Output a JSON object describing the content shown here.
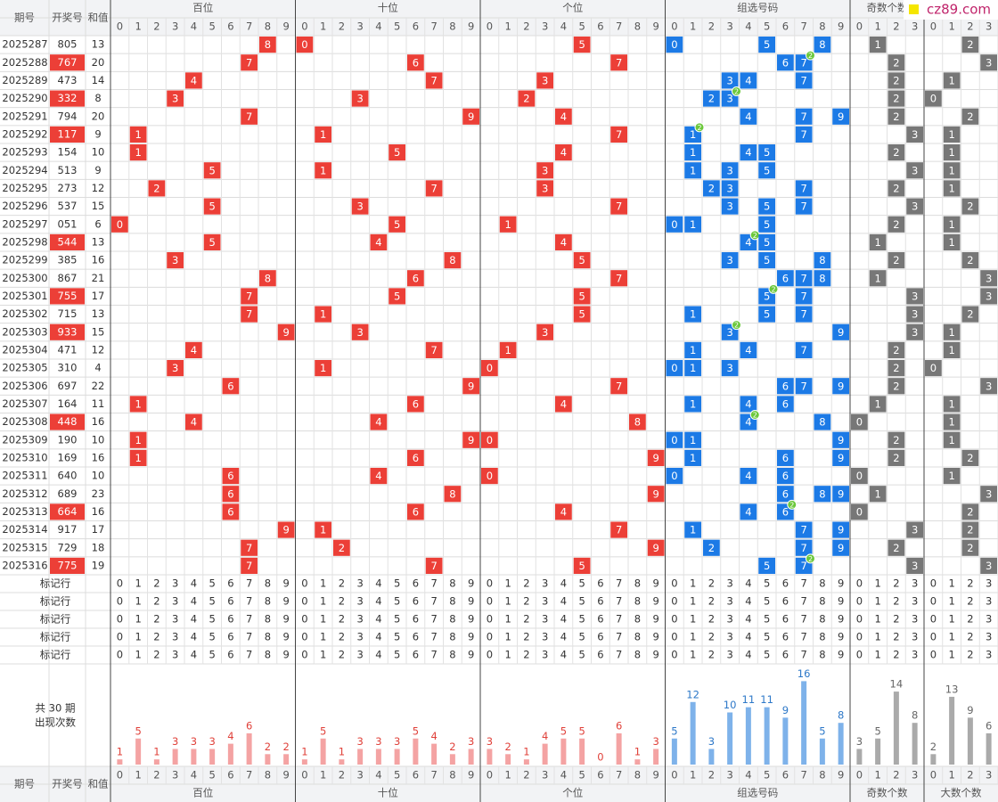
{
  "table": {
    "watermark": "cz89.com",
    "columns": [
      "期号",
      "开奖号",
      "和值"
    ],
    "pair_badge": "2",
    "summary": [
      "共 30 期",
      "出现次数"
    ],
    "marker_rows": [
      "标记行",
      "标记行",
      "标记行",
      "标记行",
      "标记行"
    ],
    "sections": [
      {
        "title": "百位",
        "field": "hundreds",
        "color": "#ec3f37",
        "bar_color": "#f4a3a3",
        "count_color": "#e0413a",
        "labels": [
          "0",
          "1",
          "2",
          "3",
          "4",
          "5",
          "6",
          "7",
          "8",
          "9"
        ],
        "counts": [
          1,
          5,
          1,
          3,
          3,
          3,
          4,
          6,
          2,
          2
        ]
      },
      {
        "title": "十位",
        "field": "tens",
        "color": "#ec3f37",
        "bar_color": "#f4a3a3",
        "count_color": "#e0413a",
        "labels": [
          "0",
          "1",
          "2",
          "3",
          "4",
          "5",
          "6",
          "7",
          "8",
          "9"
        ],
        "counts": [
          1,
          5,
          1,
          3,
          3,
          3,
          5,
          4,
          2,
          3
        ]
      },
      {
        "title": "个位",
        "field": "units",
        "color": "#ec3f37",
        "bar_color": "#f4a3a3",
        "count_color": "#e0413a",
        "labels": [
          "0",
          "1",
          "2",
          "3",
          "4",
          "5",
          "6",
          "7",
          "8",
          "9"
        ],
        "counts": [
          3,
          2,
          1,
          4,
          5,
          5,
          0,
          6,
          1,
          3
        ]
      },
      {
        "title": "组选号码",
        "field": "group",
        "color": "#1c7ae6",
        "bar_color": "#7eb2ea",
        "count_color": "#2d78c8",
        "labels": [
          "0",
          "1",
          "2",
          "3",
          "4",
          "5",
          "6",
          "7",
          "8",
          "9"
        ],
        "counts": [
          5,
          12,
          3,
          10,
          11,
          11,
          9,
          16,
          5,
          8
        ]
      },
      {
        "title": "奇数个数",
        "field": "odd",
        "color": "#777777",
        "bar_color": "#aaaaaa",
        "count_color": "#666666",
        "labels": [
          "0",
          "1",
          "2",
          "3"
        ],
        "counts": [
          3,
          5,
          14,
          8
        ]
      },
      {
        "title": "大数个数",
        "field": "big",
        "color": "#777777",
        "bar_color": "#aaaaaa",
        "count_color": "#666666",
        "labels": [
          "0",
          "1",
          "2",
          "3"
        ],
        "counts": [
          2,
          13,
          9,
          6
        ]
      }
    ],
    "rows": [
      {
        "issue": "2025287",
        "number": "805",
        "sum": 13,
        "hundreds": 8,
        "tens": 0,
        "units": 5,
        "group": [
          0,
          5,
          8
        ],
        "odd": 1,
        "big": 2
      },
      {
        "issue": "2025288",
        "number": "767",
        "sum": 20,
        "hundreds": 7,
        "tens": 6,
        "units": 7,
        "group": [
          6,
          7
        ],
        "pair": 7,
        "odd": 2,
        "big": 3
      },
      {
        "issue": "2025289",
        "number": "473",
        "sum": 14,
        "hundreds": 4,
        "tens": 7,
        "units": 3,
        "group": [
          3,
          4,
          7
        ],
        "odd": 2,
        "big": 1
      },
      {
        "issue": "2025290",
        "number": "332",
        "sum": 8,
        "hundreds": 3,
        "tens": 3,
        "units": 2,
        "group": [
          2,
          3
        ],
        "pair": 3,
        "odd": 2,
        "big": 0
      },
      {
        "issue": "2025291",
        "number": "794",
        "sum": 20,
        "hundreds": 7,
        "tens": 9,
        "units": 4,
        "group": [
          4,
          7,
          9
        ],
        "odd": 2,
        "big": 2
      },
      {
        "issue": "2025292",
        "number": "117",
        "sum": 9,
        "hundreds": 1,
        "tens": 1,
        "units": 7,
        "group": [
          1,
          7
        ],
        "pair": 1,
        "odd": 3,
        "big": 1
      },
      {
        "issue": "2025293",
        "number": "154",
        "sum": 10,
        "hundreds": 1,
        "tens": 5,
        "units": 4,
        "group": [
          1,
          4,
          5
        ],
        "odd": 2,
        "big": 1
      },
      {
        "issue": "2025294",
        "number": "513",
        "sum": 9,
        "hundreds": 5,
        "tens": 1,
        "units": 3,
        "group": [
          1,
          3,
          5
        ],
        "odd": 3,
        "big": 1
      },
      {
        "issue": "2025295",
        "number": "273",
        "sum": 12,
        "hundreds": 2,
        "tens": 7,
        "units": 3,
        "group": [
          2,
          3,
          7
        ],
        "odd": 2,
        "big": 1
      },
      {
        "issue": "2025296",
        "number": "537",
        "sum": 15,
        "hundreds": 5,
        "tens": 3,
        "units": 7,
        "group": [
          3,
          5,
          7
        ],
        "odd": 3,
        "big": 2
      },
      {
        "issue": "2025297",
        "number": "051",
        "sum": 6,
        "hundreds": 0,
        "tens": 5,
        "units": 1,
        "group": [
          0,
          1,
          5
        ],
        "odd": 2,
        "big": 1
      },
      {
        "issue": "2025298",
        "number": "544",
        "sum": 13,
        "hundreds": 5,
        "tens": 4,
        "units": 4,
        "group": [
          4,
          5
        ],
        "pair": 4,
        "odd": 1,
        "big": 1
      },
      {
        "issue": "2025299",
        "number": "385",
        "sum": 16,
        "hundreds": 3,
        "tens": 8,
        "units": 5,
        "group": [
          3,
          5,
          8
        ],
        "odd": 2,
        "big": 2
      },
      {
        "issue": "2025300",
        "number": "867",
        "sum": 21,
        "hundreds": 8,
        "tens": 6,
        "units": 7,
        "group": [
          6,
          7,
          8
        ],
        "odd": 1,
        "big": 3
      },
      {
        "issue": "2025301",
        "number": "755",
        "sum": 17,
        "hundreds": 7,
        "tens": 5,
        "units": 5,
        "group": [
          5,
          7
        ],
        "pair": 5,
        "odd": 3,
        "big": 3
      },
      {
        "issue": "2025302",
        "number": "715",
        "sum": 13,
        "hundreds": 7,
        "tens": 1,
        "units": 5,
        "group": [
          1,
          5,
          7
        ],
        "odd": 3,
        "big": 2
      },
      {
        "issue": "2025303",
        "number": "933",
        "sum": 15,
        "hundreds": 9,
        "tens": 3,
        "units": 3,
        "group": [
          3,
          9
        ],
        "pair": 3,
        "odd": 3,
        "big": 1
      },
      {
        "issue": "2025304",
        "number": "471",
        "sum": 12,
        "hundreds": 4,
        "tens": 7,
        "units": 1,
        "group": [
          1,
          4,
          7
        ],
        "odd": 2,
        "big": 1
      },
      {
        "issue": "2025305",
        "number": "310",
        "sum": 4,
        "hundreds": 3,
        "tens": 1,
        "units": 0,
        "group": [
          0,
          1,
          3
        ],
        "odd": 2,
        "big": 0
      },
      {
        "issue": "2025306",
        "number": "697",
        "sum": 22,
        "hundreds": 6,
        "tens": 9,
        "units": 7,
        "group": [
          6,
          7,
          9
        ],
        "odd": 2,
        "big": 3
      },
      {
        "issue": "2025307",
        "number": "164",
        "sum": 11,
        "hundreds": 1,
        "tens": 6,
        "units": 4,
        "group": [
          1,
          4,
          6
        ],
        "odd": 1,
        "big": 1
      },
      {
        "issue": "2025308",
        "number": "448",
        "sum": 16,
        "hundreds": 4,
        "tens": 4,
        "units": 8,
        "group": [
          4,
          8
        ],
        "pair": 4,
        "odd": 0,
        "big": 1
      },
      {
        "issue": "2025309",
        "number": "190",
        "sum": 10,
        "hundreds": 1,
        "tens": 9,
        "units": 0,
        "group": [
          0,
          1,
          9
        ],
        "odd": 2,
        "big": 1
      },
      {
        "issue": "2025310",
        "number": "169",
        "sum": 16,
        "hundreds": 1,
        "tens": 6,
        "units": 9,
        "group": [
          1,
          6,
          9
        ],
        "odd": 2,
        "big": 2
      },
      {
        "issue": "2025311",
        "number": "640",
        "sum": 10,
        "hundreds": 6,
        "tens": 4,
        "units": 0,
        "group": [
          0,
          4,
          6
        ],
        "odd": 0,
        "big": 1
      },
      {
        "issue": "2025312",
        "number": "689",
        "sum": 23,
        "hundreds": 6,
        "tens": 8,
        "units": 9,
        "group": [
          6,
          8,
          9
        ],
        "odd": 1,
        "big": 3
      },
      {
        "issue": "2025313",
        "number": "664",
        "sum": 16,
        "hundreds": 6,
        "tens": 6,
        "units": 4,
        "group": [
          4,
          6
        ],
        "pair": 6,
        "odd": 0,
        "big": 2
      },
      {
        "issue": "2025314",
        "number": "917",
        "sum": 17,
        "hundreds": 9,
        "tens": 1,
        "units": 7,
        "group": [
          1,
          7,
          9
        ],
        "odd": 3,
        "big": 2
      },
      {
        "issue": "2025315",
        "number": "729",
        "sum": 18,
        "hundreds": 7,
        "tens": 2,
        "units": 9,
        "group": [
          2,
          7,
          9
        ],
        "odd": 2,
        "big": 2
      },
      {
        "issue": "2025316",
        "number": "775",
        "sum": 19,
        "hundreds": 7,
        "tens": 7,
        "units": 5,
        "group": [
          5,
          7
        ],
        "pair": 7,
        "odd": 3,
        "big": 3
      }
    ]
  }
}
